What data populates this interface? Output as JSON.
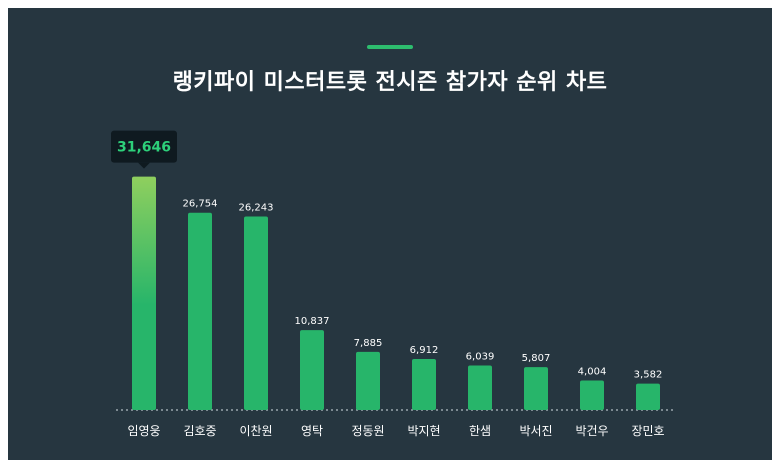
{
  "colors": {
    "background": "#263640",
    "accent": "#2dbd6e",
    "bar": "#27b56a",
    "bar_top_highlight": "#8fcf5e",
    "tooltip_bg": "#0f1a20",
    "tooltip_text": "#2dd07a",
    "label_text": "#ffffff",
    "baseline": "#9aa6ad"
  },
  "chart_data": {
    "type": "bar",
    "title": "랭키파이 미스터트롯 전시즌 참가자 순위 차트",
    "xlabel": "",
    "ylabel": "",
    "ylim": [
      0,
      32000
    ],
    "grid": false,
    "categories": [
      "임영웅",
      "김호중",
      "이찬원",
      "영탁",
      "정동원",
      "박지현",
      "한샘",
      "박서진",
      "박건우",
      "장민호"
    ],
    "values": [
      31646,
      26754,
      26243,
      10837,
      7885,
      6912,
      6039,
      5807,
      4004,
      3582
    ],
    "value_labels": [
      "31,646",
      "26,754",
      "26,243",
      "10,837",
      "7,885",
      "6,912",
      "6,039",
      "5,807",
      "4,004",
      "3,582"
    ],
    "highlight_index": 0
  }
}
